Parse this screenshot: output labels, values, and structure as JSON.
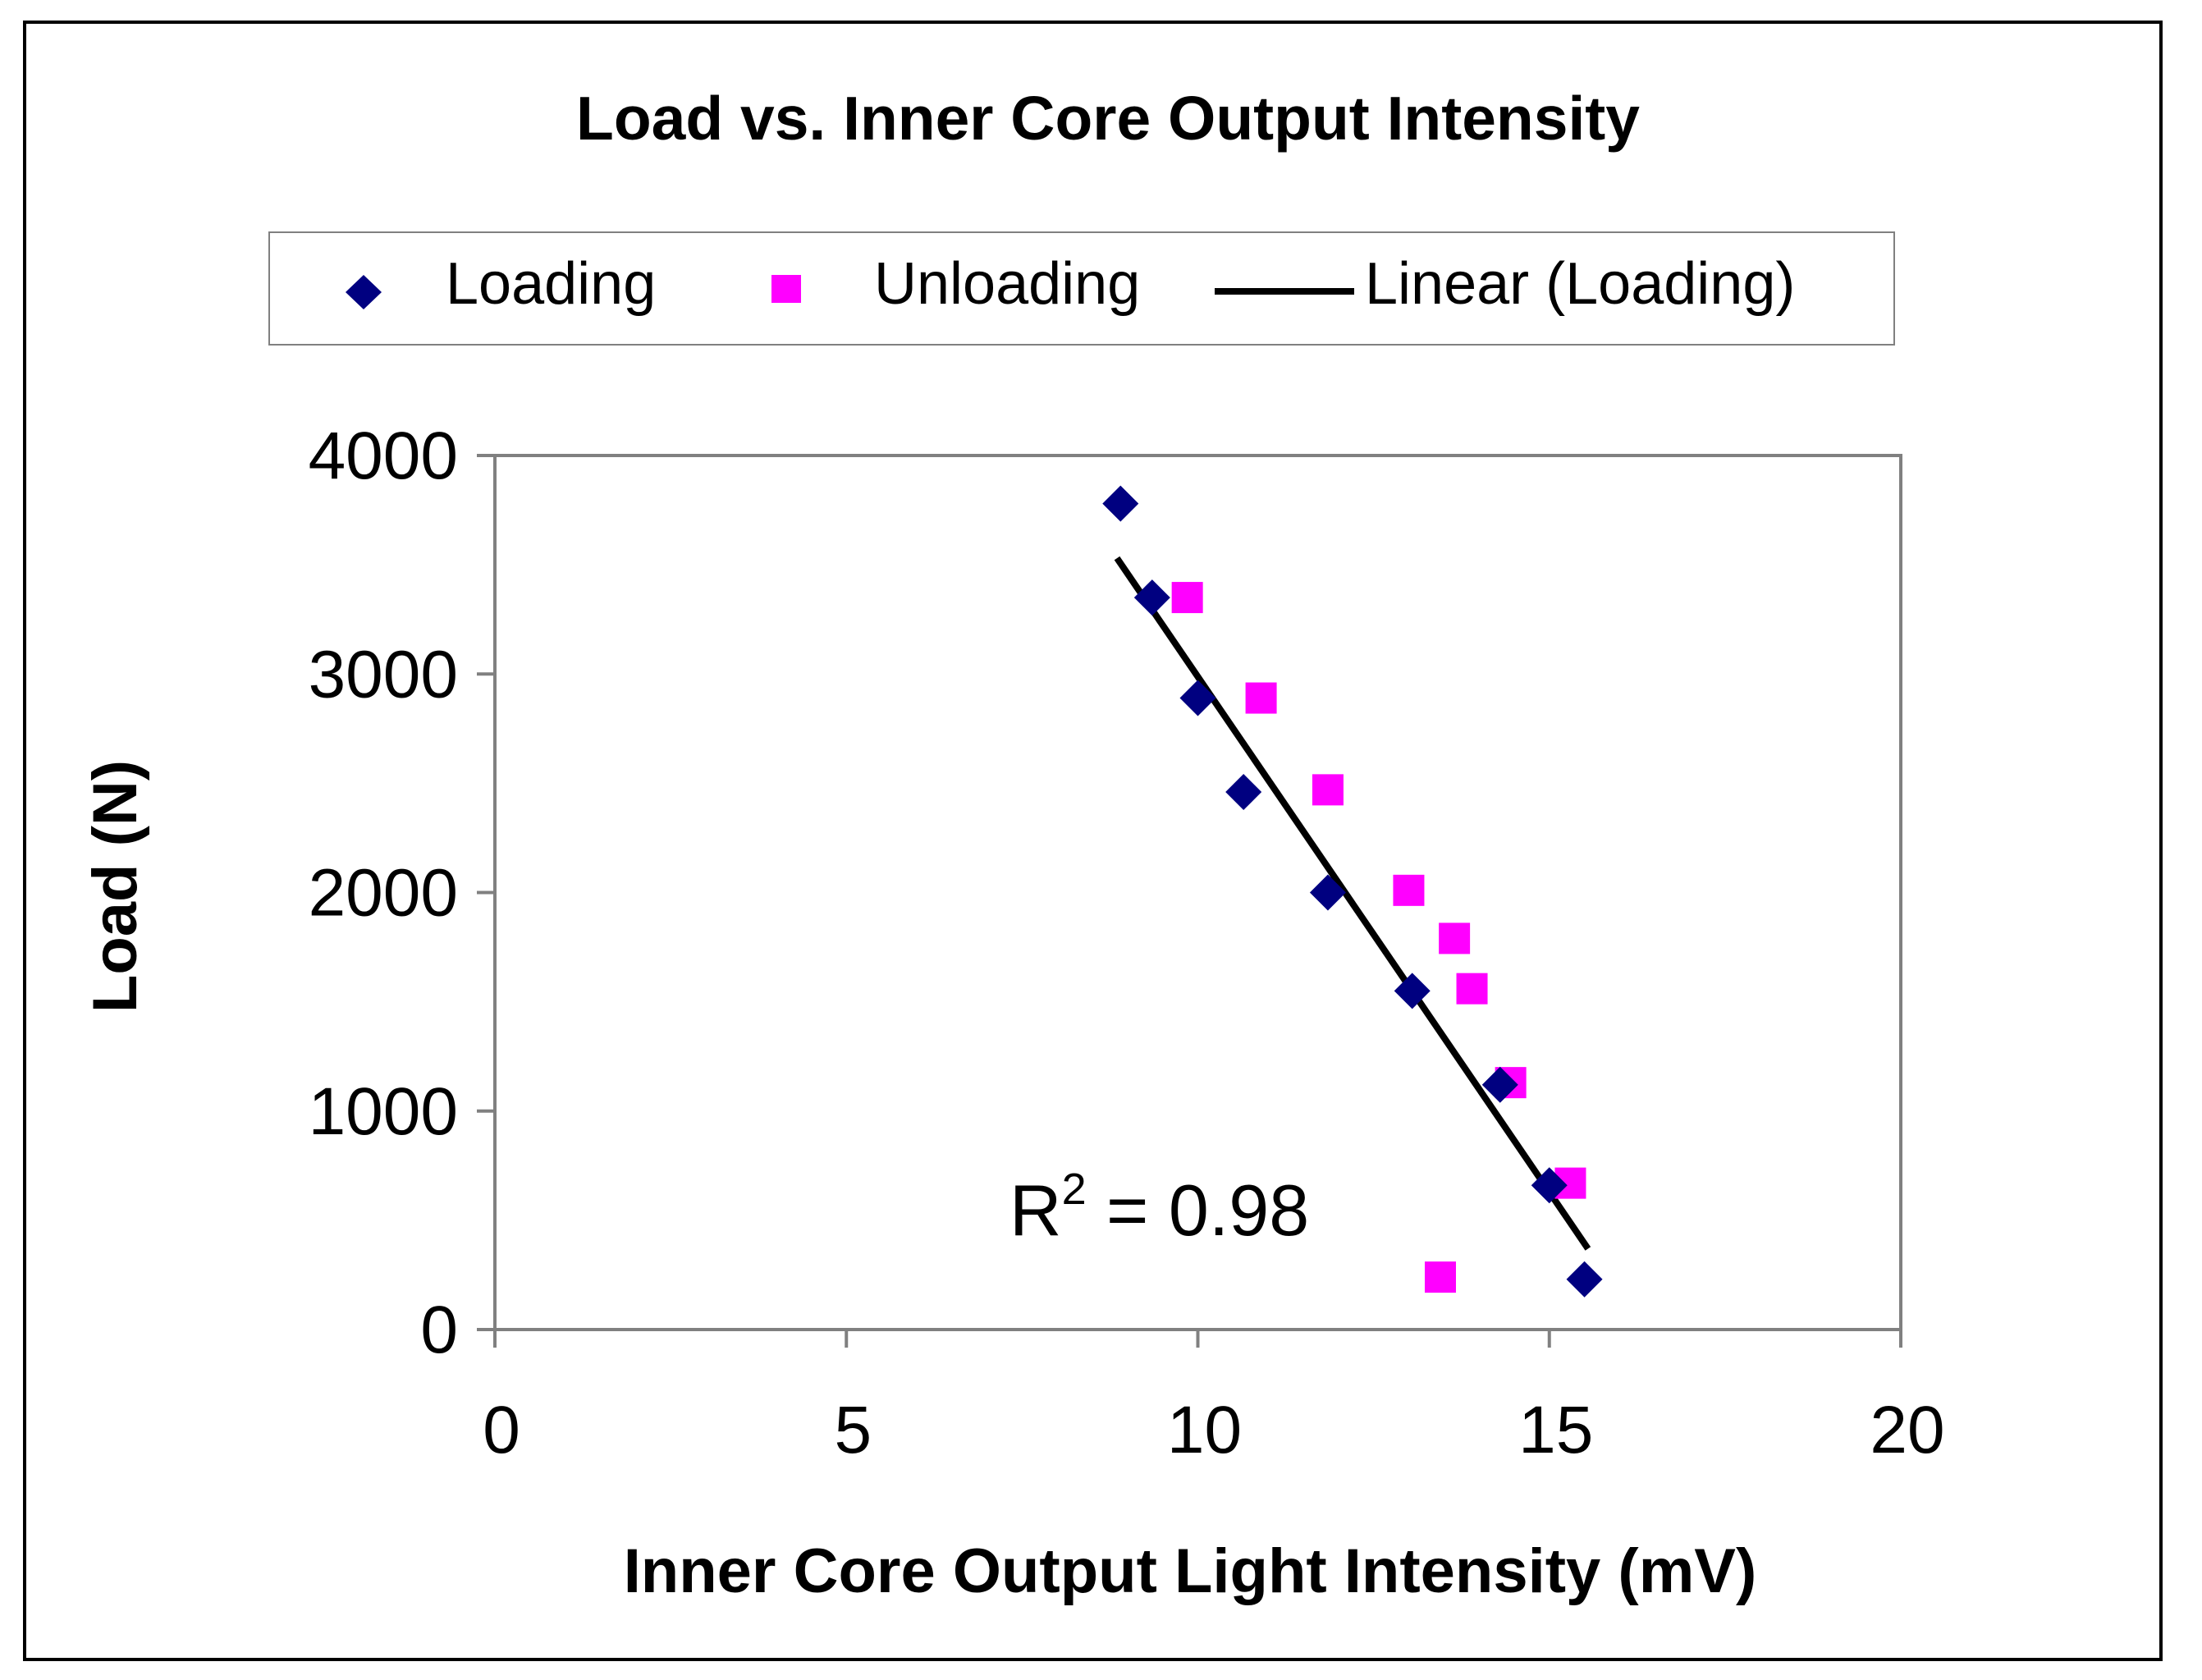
{
  "chart_data": {
    "type": "scatter",
    "title": "Load vs. Inner Core Output Intensity",
    "xlabel": "Inner Core Output Light  Intensity (mV)",
    "ylabel": "Load (N)",
    "xlim": [
      0,
      20
    ],
    "ylim": [
      0,
      4000
    ],
    "x_ticks": [
      "0",
      "5",
      "10",
      "15",
      "20"
    ],
    "y_ticks": [
      "0",
      "1000",
      "2000",
      "3000",
      "4000"
    ],
    "grid": false,
    "legend_position": "top",
    "series": [
      {
        "name": "Loading",
        "marker": "diamond",
        "color": "#000080",
        "points": [
          {
            "x": 8.9,
            "y": 3780
          },
          {
            "x": 9.35,
            "y": 3350
          },
          {
            "x": 10.0,
            "y": 2890
          },
          {
            "x": 10.65,
            "y": 2460
          },
          {
            "x": 11.85,
            "y": 2000
          },
          {
            "x": 13.05,
            "y": 1550
          },
          {
            "x": 14.3,
            "y": 1120
          },
          {
            "x": 15.0,
            "y": 660
          },
          {
            "x": 15.5,
            "y": 230
          }
        ]
      },
      {
        "name": "Unloading",
        "marker": "square",
        "color": "#ff00ff",
        "points": [
          {
            "x": 9.85,
            "y": 3350
          },
          {
            "x": 10.9,
            "y": 2890
          },
          {
            "x": 11.85,
            "y": 2470
          },
          {
            "x": 13.0,
            "y": 2010
          },
          {
            "x": 13.65,
            "y": 1790
          },
          {
            "x": 13.9,
            "y": 1560
          },
          {
            "x": 14.45,
            "y": 1130
          },
          {
            "x": 15.3,
            "y": 670
          },
          {
            "x": 13.45,
            "y": 240
          }
        ]
      },
      {
        "name": "Linear (Loading)",
        "marker": "line",
        "color": "#000000",
        "line": {
          "x_start": 8.85,
          "y_start": 3530,
          "x_end": 15.55,
          "y_end": 370
        }
      }
    ],
    "annotation": {
      "base": "R",
      "superscript": "2",
      "rest": " = 0.98"
    }
  }
}
